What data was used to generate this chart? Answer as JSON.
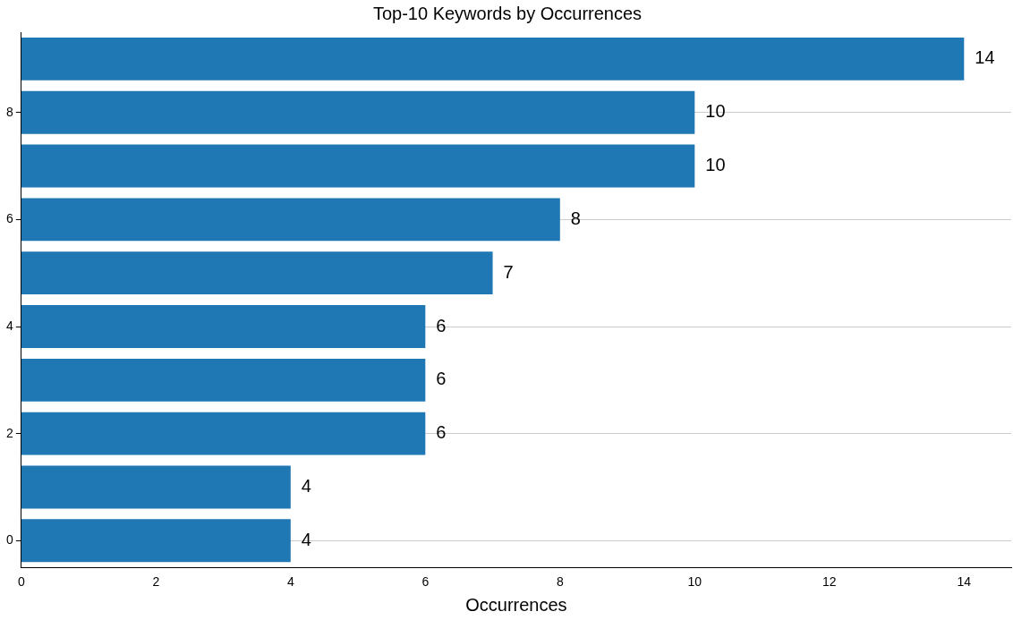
{
  "chart_data": {
    "type": "bar",
    "orientation": "horizontal",
    "title": "Top-10 Keywords by Occurrences",
    "xlabel": "Occurrences",
    "categories": [
      null,
      "8",
      null,
      "6",
      null,
      "4",
      null,
      "2",
      null,
      "0"
    ],
    "values": [
      14,
      10,
      10,
      8,
      7,
      6,
      6,
      6,
      4,
      4
    ],
    "color": "#1f77b4",
    "xlim": [
      0,
      14.7
    ],
    "xticks": [
      0,
      2,
      4,
      6,
      8,
      10,
      12,
      14
    ],
    "grid": "y",
    "data_labels": true
  }
}
